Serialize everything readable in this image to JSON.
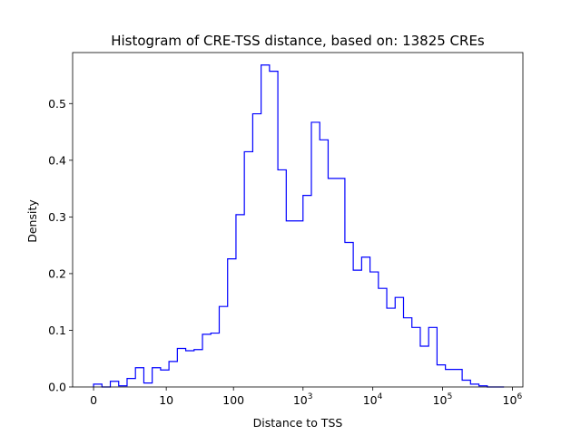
{
  "chart_data": {
    "type": "step-histogram",
    "title": "Histogram of CRE-TSS distance, based on: 13825 CREs",
    "xlabel": "Distance to TSS",
    "ylabel": "Density",
    "x_scale": "symlog",
    "x_ticks": [
      {
        "value": 0,
        "base": "0",
        "exp": ""
      },
      {
        "value": 10,
        "base": "10",
        "exp": ""
      },
      {
        "value": 100,
        "base": "100",
        "exp": ""
      },
      {
        "value": 1000,
        "base": "10",
        "exp": "3"
      },
      {
        "value": 10000,
        "base": "10",
        "exp": "4"
      },
      {
        "value": 100000,
        "base": "10",
        "exp": "5"
      },
      {
        "value": 1000000,
        "base": "10",
        "exp": "6"
      }
    ],
    "y_ticks": [
      "0.0",
      "0.1",
      "0.2",
      "0.3",
      "0.4",
      "0.5"
    ],
    "ylim": [
      0,
      0.59
    ],
    "series_color": "#0000ff",
    "bin_edges_log10x1": [
      0.0,
      0.12,
      0.24,
      0.36,
      0.48,
      0.6,
      0.72,
      0.84,
      0.96,
      1.08,
      1.2,
      1.32,
      1.44,
      1.56,
      1.68,
      1.8,
      1.92,
      2.04,
      2.16,
      2.28,
      2.4,
      2.52,
      2.64,
      2.76,
      2.88,
      3.0,
      3.12,
      3.24,
      3.36,
      3.48,
      3.6,
      3.72,
      3.84,
      3.96,
      4.08,
      4.2,
      4.32,
      4.44,
      4.56,
      4.68,
      4.8,
      4.92,
      5.04,
      5.16,
      5.28,
      5.4,
      5.52,
      5.64,
      5.76,
      5.88
    ],
    "densities": [
      0.005,
      0.0,
      0.01,
      0.002,
      0.015,
      0.034,
      0.007,
      0.034,
      0.03,
      0.045,
      0.068,
      0.064,
      0.066,
      0.093,
      0.095,
      0.142,
      0.226,
      0.304,
      0.415,
      0.482,
      0.568,
      0.557,
      0.383,
      0.293,
      0.293,
      0.338,
      0.467,
      0.436,
      0.368,
      0.368,
      0.255,
      0.206,
      0.229,
      0.203,
      0.174,
      0.139,
      0.158,
      0.122,
      0.105,
      0.072,
      0.105,
      0.039,
      0.031,
      0.031,
      0.012,
      0.005,
      0.002,
      0.0,
      0.0
    ]
  }
}
